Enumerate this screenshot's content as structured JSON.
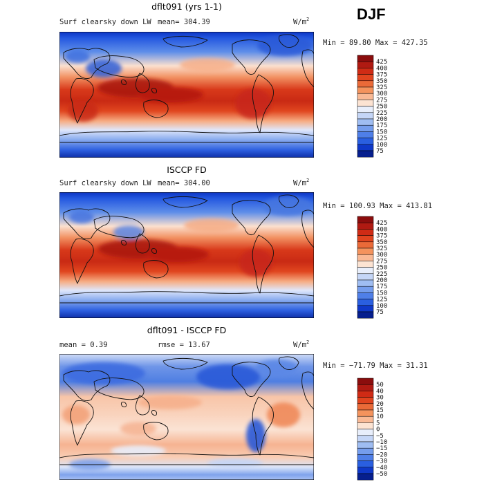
{
  "season": "DJF",
  "chart_data": [
    {
      "type": "heatmap",
      "title": "dflt091 (yrs 1-1)",
      "variable": "Surf clearsky down LW",
      "mean_text": "mean= 304.39",
      "units_base": "W/m",
      "units_exp": "2",
      "minmax_text": "Min =  89.80 Max = 427.35",
      "colorbar_levels": [
        "425",
        "400",
        "375",
        "350",
        "325",
        "300",
        "275",
        "250",
        "225",
        "200",
        "175",
        "150",
        "125",
        "100",
        "75"
      ],
      "colorbar_colors": [
        "#8b0d0d",
        "#b01a12",
        "#cf2b15",
        "#e0441f",
        "#ea6a38",
        "#f4935d",
        "#f9b995",
        "#fce3d2",
        "#e8eefb",
        "#c5d6f7",
        "#9fbdf2",
        "#759ded",
        "#4f7fe8",
        "#2a5fe0",
        "#0f38c8",
        "#061f8e"
      ]
    },
    {
      "type": "heatmap",
      "title": "ISCCP FD",
      "variable": "Surf clearsky down LW",
      "mean_text": "mean= 304.00",
      "units_base": "W/m",
      "units_exp": "2",
      "minmax_text": "Min = 100.93 Max = 413.81",
      "colorbar_levels": [
        "425",
        "400",
        "375",
        "350",
        "325",
        "300",
        "275",
        "250",
        "225",
        "200",
        "175",
        "150",
        "125",
        "100",
        "75"
      ],
      "colorbar_colors": [
        "#8b0d0d",
        "#b01a12",
        "#cf2b15",
        "#e0441f",
        "#ea6a38",
        "#f4935d",
        "#f9b995",
        "#fce3d2",
        "#e8eefb",
        "#c5d6f7",
        "#9fbdf2",
        "#759ded",
        "#4f7fe8",
        "#2a5fe0",
        "#0f38c8",
        "#061f8e"
      ]
    },
    {
      "type": "heatmap",
      "title": "dflt091 - ISCCP FD",
      "mean_text": "mean =   0.39",
      "rmse_text": "rmse =  13.67",
      "units_base": "W/m",
      "units_exp": "2",
      "minmax_text": "Min = −71.79 Max =  31.31",
      "colorbar_levels": [
        "50",
        "40",
        "30",
        "20",
        "15",
        "10",
        "5",
        "0",
        "−5",
        "−10",
        "−15",
        "−20",
        "−30",
        "−40",
        "−50"
      ],
      "colorbar_colors": [
        "#8b0d0d",
        "#b01a12",
        "#cf2b15",
        "#e0441f",
        "#ea6a38",
        "#f4935d",
        "#f9b995",
        "#fce3d2",
        "#e8eefb",
        "#c5d6f7",
        "#9fbdf2",
        "#759ded",
        "#4f7fe8",
        "#2a5fe0",
        "#0f38c8",
        "#061f8e"
      ]
    }
  ]
}
